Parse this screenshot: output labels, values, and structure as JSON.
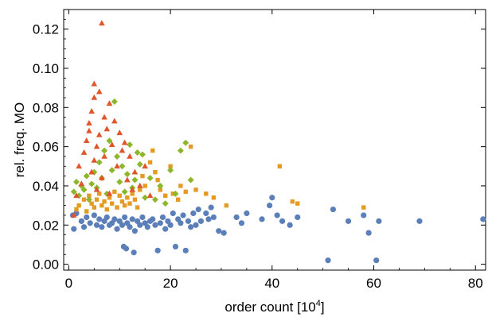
{
  "chart_data": {
    "type": "scatter",
    "title": "",
    "xlabel": "order count [10",
    "xlabel_sup": "4",
    "xlabel_suffix": "]",
    "ylabel": "rel. freq. MO",
    "xlim": [
      -1,
      82
    ],
    "ylim": [
      -0.003,
      0.13
    ],
    "x_ticks": [
      0,
      20,
      40,
      60,
      80
    ],
    "x_tick_labels": [
      "0",
      "20",
      "40",
      "60",
      "80"
    ],
    "y_ticks": [
      0.0,
      0.02,
      0.04,
      0.06,
      0.08,
      0.1,
      0.12
    ],
    "y_tick_labels": [
      "0.00",
      "0.02",
      "0.04",
      "0.06",
      "0.08",
      "0.10",
      "0.12"
    ],
    "grid": false,
    "series": [
      {
        "marker": "circle",
        "color": "#5b7fb9",
        "points": [
          [
            0.8,
            0.025
          ],
          [
            1.0,
            0.018
          ],
          [
            1.5,
            0.026
          ],
          [
            2.5,
            0.022
          ],
          [
            3.0,
            0.019
          ],
          [
            3.5,
            0.024
          ],
          [
            4.2,
            0.021
          ],
          [
            5.0,
            0.025
          ],
          [
            5.5,
            0.02
          ],
          [
            6.0,
            0.023
          ],
          [
            6.5,
            0.019
          ],
          [
            7.0,
            0.022
          ],
          [
            7.5,
            0.024
          ],
          [
            8.0,
            0.02
          ],
          [
            8.5,
            0.021
          ],
          [
            9.0,
            0.023
          ],
          [
            9.5,
            0.018
          ],
          [
            10.0,
            0.022
          ],
          [
            10.5,
            0.02
          ],
          [
            10.8,
            0.009
          ],
          [
            11.0,
            0.024
          ],
          [
            11.3,
            0.008
          ],
          [
            11.5,
            0.021
          ],
          [
            12.0,
            0.019
          ],
          [
            12.5,
            0.023
          ],
          [
            12.8,
            0.006
          ],
          [
            13.0,
            0.017
          ],
          [
            13.5,
            0.022
          ],
          [
            14.0,
            0.02
          ],
          [
            14.5,
            0.024
          ],
          [
            15.0,
            0.021
          ],
          [
            15.5,
            0.019
          ],
          [
            16.0,
            0.022
          ],
          [
            16.5,
            0.023
          ],
          [
            17.0,
            0.02
          ],
          [
            17.5,
            0.007
          ],
          [
            18.0,
            0.021
          ],
          [
            18.5,
            0.024
          ],
          [
            19.0,
            0.018
          ],
          [
            19.5,
            0.022
          ],
          [
            20.0,
            0.02
          ],
          [
            20.5,
            0.026
          ],
          [
            21.0,
            0.009
          ],
          [
            21.5,
            0.023
          ],
          [
            22.0,
            0.021
          ],
          [
            22.5,
            0.025
          ],
          [
            23.0,
            0.007
          ],
          [
            23.5,
            0.022
          ],
          [
            24.0,
            0.019
          ],
          [
            24.5,
            0.026
          ],
          [
            25.0,
            0.02
          ],
          [
            25.5,
            0.028
          ],
          [
            26.0,
            0.022
          ],
          [
            27.0,
            0.026
          ],
          [
            27.5,
            0.023
          ],
          [
            28.0,
            0.029
          ],
          [
            28.5,
            0.024
          ],
          [
            29.5,
            0.017
          ],
          [
            30.5,
            0.016
          ],
          [
            33.0,
            0.024
          ],
          [
            34.0,
            0.021
          ],
          [
            35.0,
            0.026
          ],
          [
            38.0,
            0.023
          ],
          [
            39.5,
            0.03
          ],
          [
            40.0,
            0.034
          ],
          [
            41.0,
            0.025
          ],
          [
            42.0,
            0.022
          ],
          [
            43.5,
            0.02
          ],
          [
            45.0,
            0.024
          ],
          [
            51.0,
            0.002
          ],
          [
            52.0,
            0.028
          ],
          [
            55.0,
            0.022
          ],
          [
            58.0,
            0.025
          ],
          [
            59.0,
            0.016
          ],
          [
            60.5,
            0.002
          ],
          [
            61.0,
            0.022
          ],
          [
            69.0,
            0.022
          ],
          [
            81.5,
            0.023
          ]
        ]
      },
      {
        "marker": "square",
        "color": "#e59a24",
        "points": [
          [
            1.5,
            0.028
          ],
          [
            2.0,
            0.03
          ],
          [
            3.0,
            0.033
          ],
          [
            3.5,
            0.027
          ],
          [
            4.0,
            0.035
          ],
          [
            4.5,
            0.031
          ],
          [
            5.0,
            0.029
          ],
          [
            5.5,
            0.033
          ],
          [
            6.0,
            0.036
          ],
          [
            6.5,
            0.03
          ],
          [
            7.0,
            0.032
          ],
          [
            7.5,
            0.028
          ],
          [
            8.0,
            0.034
          ],
          [
            8.5,
            0.031
          ],
          [
            9.0,
            0.037
          ],
          [
            9.5,
            0.029
          ],
          [
            10.0,
            0.035
          ],
          [
            10.5,
            0.032
          ],
          [
            11.0,
            0.03
          ],
          [
            11.5,
            0.034
          ],
          [
            12.0,
            0.031
          ],
          [
            12.5,
            0.036
          ],
          [
            13.0,
            0.033
          ],
          [
            13.5,
            0.029
          ],
          [
            14.0,
            0.038
          ],
          [
            14.5,
            0.045
          ],
          [
            15.0,
            0.04
          ],
          [
            16.0,
            0.052
          ],
          [
            16.5,
            0.058
          ],
          [
            17.0,
            0.047
          ],
          [
            17.5,
            0.043
          ],
          [
            18.0,
            0.038
          ],
          [
            19.0,
            0.035
          ],
          [
            20.0,
            0.05
          ],
          [
            20.5,
            0.036
          ],
          [
            21.5,
            0.033
          ],
          [
            22.0,
            0.04
          ],
          [
            23.0,
            0.037
          ],
          [
            24.0,
            0.06
          ],
          [
            25.0,
            0.038
          ],
          [
            27.0,
            0.036
          ],
          [
            28.5,
            0.034
          ],
          [
            31.0,
            0.03
          ],
          [
            41.5,
            0.05
          ],
          [
            44.0,
            0.032
          ],
          [
            45.0,
            0.031
          ],
          [
            58.0,
            0.029
          ]
        ]
      },
      {
        "marker": "diamond",
        "color": "#8db62c",
        "points": [
          [
            1.0,
            0.037
          ],
          [
            1.5,
            0.042
          ],
          [
            2.0,
            0.035
          ],
          [
            2.5,
            0.04
          ],
          [
            3.0,
            0.038
          ],
          [
            3.5,
            0.045
          ],
          [
            4.0,
            0.033
          ],
          [
            4.5,
            0.041
          ],
          [
            5.0,
            0.047
          ],
          [
            5.5,
            0.039
          ],
          [
            6.0,
            0.052
          ],
          [
            6.5,
            0.044
          ],
          [
            7.0,
            0.058
          ],
          [
            7.5,
            0.036
          ],
          [
            8.0,
            0.063
          ],
          [
            8.5,
            0.048
          ],
          [
            9.0,
            0.083
          ],
          [
            9.5,
            0.055
          ],
          [
            10.0,
            0.042
          ],
          [
            10.5,
            0.05
          ],
          [
            11.0,
            0.037
          ],
          [
            11.5,
            0.046
          ],
          [
            12.0,
            0.061
          ],
          [
            12.5,
            0.039
          ],
          [
            13.0,
            0.043
          ],
          [
            13.5,
            0.057
          ],
          [
            14.0,
            0.051
          ],
          [
            14.5,
            0.056
          ],
          [
            15.0,
            0.034
          ],
          [
            16.0,
            0.044
          ],
          [
            17.0,
            0.033
          ],
          [
            18.0,
            0.04
          ],
          [
            19.0,
            0.031
          ],
          [
            20.0,
            0.048
          ],
          [
            21.0,
            0.036
          ],
          [
            22.0,
            0.058
          ],
          [
            23.0,
            0.062
          ],
          [
            24.0,
            0.043
          ]
        ]
      },
      {
        "marker": "triangle",
        "color": "#e0552a",
        "points": [
          [
            1.0,
            0.025
          ],
          [
            1.5,
            0.035
          ],
          [
            2.0,
            0.05
          ],
          [
            2.5,
            0.041
          ],
          [
            3.0,
            0.057
          ],
          [
            3.5,
            0.063
          ],
          [
            4.0,
            0.068
          ],
          [
            4.0,
            0.072
          ],
          [
            4.5,
            0.078
          ],
          [
            4.5,
            0.047
          ],
          [
            5.0,
            0.092
          ],
          [
            5.0,
            0.085
          ],
          [
            5.0,
            0.053
          ],
          [
            5.5,
            0.06
          ],
          [
            5.5,
            0.038
          ],
          [
            6.0,
            0.088
          ],
          [
            6.0,
            0.066
          ],
          [
            6.5,
            0.123
          ],
          [
            6.5,
            0.044
          ],
          [
            7.0,
            0.075
          ],
          [
            7.0,
            0.055
          ],
          [
            7.5,
            0.069
          ],
          [
            8.0,
            0.082
          ],
          [
            8.0,
            0.036
          ],
          [
            8.5,
            0.061
          ],
          [
            9.0,
            0.073
          ],
          [
            9.5,
            0.05
          ],
          [
            10.0,
            0.067
          ],
          [
            10.5,
            0.058
          ],
          [
            11.0,
            0.062
          ],
          [
            11.5,
            0.043
          ],
          [
            12.0,
            0.055
          ],
          [
            12.5,
            0.038
          ],
          [
            13.0,
            0.047
          ],
          [
            14.0,
            0.04
          ],
          [
            15.0,
            0.05
          ],
          [
            16.0,
            0.035
          ]
        ]
      }
    ]
  }
}
